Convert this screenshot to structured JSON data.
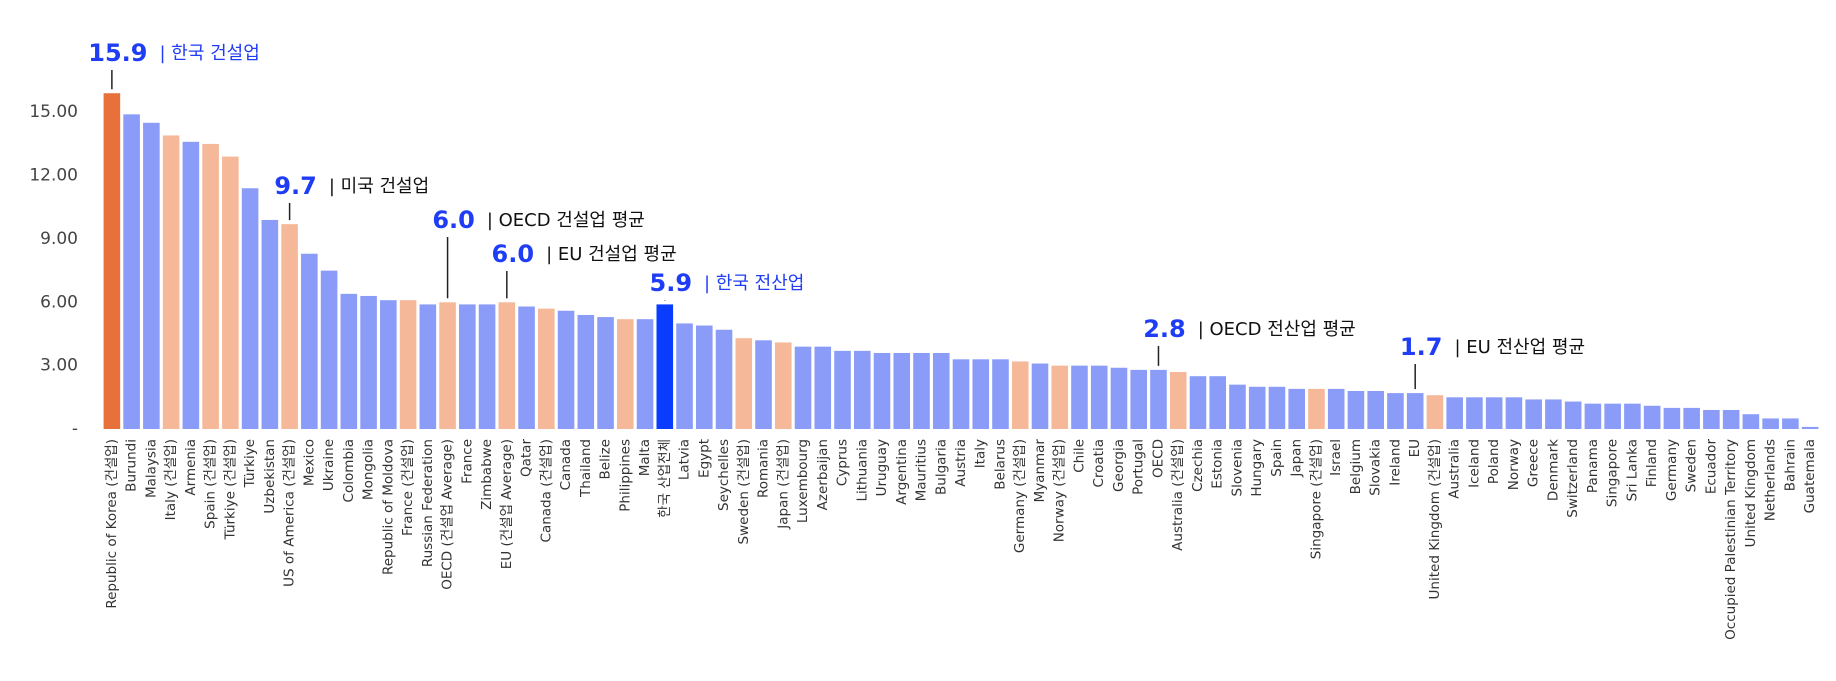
{
  "chart_data": {
    "type": "bar",
    "categories": [
      "Republic of Korea (건설업)",
      "Burundi",
      "Malaysia",
      "Italy (건설업)",
      "Armenia",
      "Spain (건설업)",
      "Türkiye (건설업)",
      "Türkiye",
      "Uzbekistan",
      "US of America (건설업)",
      "Mexico",
      "Ukraine",
      "Colombia",
      "Mongolia",
      "Republic of Moldova",
      "France (건설업)",
      "Russian Federation",
      "OECD (건설업 Average)",
      "France",
      "Zimbabwe",
      "EU (건설업 Average)",
      "Qatar",
      "Canada (건설업)",
      "Canada",
      "Thailand",
      "Belize",
      "Philippines",
      "Malta",
      "한국 산업전체",
      "Latvia",
      "Egypt",
      "Seychelles",
      "Sweden (건설업)",
      "Romania",
      "Japan (건설업)",
      "Luxembourg",
      "Azerbaijan",
      "Cyprus",
      "Lithuania",
      "Uruguay",
      "Argentina",
      "Mauritius",
      "Bulgaria",
      "Austria",
      "Italy",
      "Belarus",
      "Germany (건설업)",
      "Myanmar",
      "Norway (건설업)",
      "Chile",
      "Croatia",
      "Georgia",
      "Portugal",
      "OECD",
      "Australia (건설업)",
      "Czechia",
      "Estonia",
      "Slovenia",
      "Hungary",
      "Spain",
      "Japan",
      "Singapore (건설업)",
      "Israel",
      "Belgium",
      "Slovakia",
      "Ireland",
      "EU",
      "United Kingdom (건설업)",
      "Australia",
      "Iceland",
      "Poland",
      "Norway",
      "Greece",
      "Denmark",
      "Switzerland",
      "Panama",
      "Singapore",
      "Sri Lanka",
      "Finland",
      "Germany",
      "Sweden",
      "Ecuador",
      "Occupied Palestinian Territory",
      "United Kingdom",
      "Netherlands",
      "Bahrain",
      "Guatemala"
    ],
    "values": [
      15.9,
      14.9,
      14.5,
      13.9,
      13.6,
      13.5,
      12.9,
      11.4,
      9.9,
      9.7,
      8.3,
      7.5,
      6.4,
      6.3,
      6.1,
      6.1,
      5.9,
      6.0,
      5.9,
      5.9,
      6.0,
      5.8,
      5.7,
      5.6,
      5.4,
      5.3,
      5.2,
      5.2,
      5.9,
      5.0,
      4.9,
      4.7,
      4.3,
      4.2,
      4.1,
      3.9,
      3.9,
      3.7,
      3.7,
      3.6,
      3.6,
      3.6,
      3.6,
      3.3,
      3.3,
      3.3,
      3.2,
      3.1,
      3.0,
      3.0,
      3.0,
      2.9,
      2.8,
      2.8,
      2.7,
      2.5,
      2.5,
      2.1,
      2.0,
      2.0,
      1.9,
      1.9,
      1.9,
      1.8,
      1.8,
      1.7,
      1.7,
      1.6,
      1.5,
      1.5,
      1.5,
      1.5,
      1.4,
      1.4,
      1.3,
      1.2,
      1.2,
      1.2,
      1.1,
      1.0,
      1.0,
      0.9,
      0.9,
      0.7,
      0.5,
      0.5,
      0.1
    ],
    "colors": [
      "#e8703a",
      "#8a9cf8",
      "#8a9cf8",
      "#f5b899",
      "#8a9cf8",
      "#f5b899",
      "#f5b899",
      "#8a9cf8",
      "#8a9cf8",
      "#f5b899",
      "#8a9cf8",
      "#8a9cf8",
      "#8a9cf8",
      "#8a9cf8",
      "#8a9cf8",
      "#f5b899",
      "#8a9cf8",
      "#f5b899",
      "#8a9cf8",
      "#8a9cf8",
      "#f5b899",
      "#8a9cf8",
      "#f5b899",
      "#8a9cf8",
      "#8a9cf8",
      "#8a9cf8",
      "#f5b899",
      "#8a9cf8",
      "#0a3cff",
      "#8a9cf8",
      "#8a9cf8",
      "#8a9cf8",
      "#f5b899",
      "#8a9cf8",
      "#f5b899",
      "#8a9cf8",
      "#8a9cf8",
      "#8a9cf8",
      "#8a9cf8",
      "#8a9cf8",
      "#8a9cf8",
      "#8a9cf8",
      "#8a9cf8",
      "#8a9cf8",
      "#8a9cf8",
      "#8a9cf8",
      "#f5b899",
      "#8a9cf8",
      "#f5b899",
      "#8a9cf8",
      "#8a9cf8",
      "#8a9cf8",
      "#8a9cf8",
      "#8a9cf8",
      "#f5b899",
      "#8a9cf8",
      "#8a9cf8",
      "#8a9cf8",
      "#8a9cf8",
      "#8a9cf8",
      "#8a9cf8",
      "#f5b899",
      "#8a9cf8",
      "#8a9cf8",
      "#8a9cf8",
      "#8a9cf8",
      "#8a9cf8",
      "#f5b899",
      "#8a9cf8",
      "#8a9cf8",
      "#8a9cf8",
      "#8a9cf8",
      "#8a9cf8",
      "#8a9cf8",
      "#8a9cf8",
      "#8a9cf8",
      "#8a9cf8",
      "#8a9cf8",
      "#8a9cf8",
      "#8a9cf8",
      "#8a9cf8",
      "#8a9cf8",
      "#8a9cf8",
      "#8a9cf8",
      "#8a9cf8",
      "#8a9cf8",
      "#8a9cf8"
    ],
    "ylim": [
      0,
      17
    ],
    "yticks": [
      {
        "value": 0,
        "label": "-"
      },
      {
        "value": 3,
        "label": "3.00"
      },
      {
        "value": 6,
        "label": "6.00"
      },
      {
        "value": 9,
        "label": "9.00"
      },
      {
        "value": 12,
        "label": "12.00"
      },
      {
        "value": 15,
        "label": "15.00"
      }
    ],
    "annotations": [
      {
        "category": "Republic of Korea (건설업)",
        "label": "15.9",
        "text": "| 한국 건설업",
        "color": "#1f3df5"
      },
      {
        "category": "US of America (건설업)",
        "label": "9.7",
        "text": "| 미국 건설업",
        "color": "#111111"
      },
      {
        "category": "OECD (건설업 Average)",
        "label": "6.0",
        "text": "| OECD 건설업 평균",
        "color": "#111111"
      },
      {
        "category": "EU (건설업 Average)",
        "label": "6.0",
        "text": "| EU 건설업 평균",
        "color": "#111111"
      },
      {
        "category": "한국 산업전체",
        "label": "5.9",
        "text": "| 한국 전산업",
        "color": "#1f3df5"
      },
      {
        "category": "OECD",
        "label": "2.8",
        "text": "| OECD 전산업 평균",
        "color": "#111111"
      },
      {
        "category": "EU",
        "label": "1.7",
        "text": "| EU 전산업 평균",
        "color": "#111111"
      }
    ]
  }
}
